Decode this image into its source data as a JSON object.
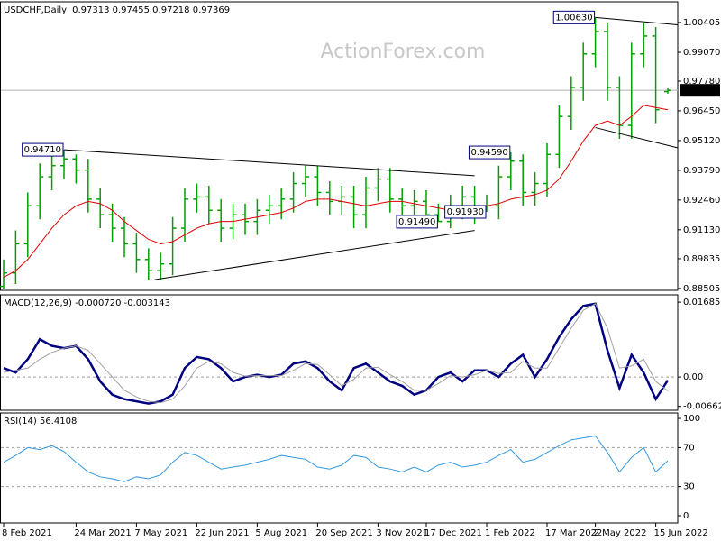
{
  "watermark": "ActionForex.com",
  "chart_data": [
    {
      "type": "ohlc",
      "title": "USDCHF,Daily",
      "ohlc_text": "0.97313 0.97455 0.97218 0.97369",
      "ylim": [
        0.8842,
        1.0133
      ],
      "yticks": [
        1.00405,
        {
          "value": 0.9907,
          "label": "0.99070"
        },
        {
          "value": 0.9778,
          "label": "0.97780"
        },
        {
          "value": 0.9645,
          "label": "0.96450"
        },
        {
          "value": 0.9512,
          "label": "0.95120"
        },
        {
          "value": 0.9379,
          "label": "0.93790"
        },
        {
          "value": 0.9246,
          "label": "0.92460"
        },
        {
          "value": 0.9113,
          "label": "0.91130"
        },
        0.89835,
        0.88505
      ],
      "color": "#00a000",
      "open": [
        0.886,
        0.892,
        0.905,
        0.922,
        0.935,
        0.94,
        0.943,
        0.938,
        0.925,
        0.918,
        0.912,
        0.905,
        0.898,
        0.893,
        0.896,
        0.912,
        0.925,
        0.926,
        0.92,
        0.912,
        0.918,
        0.915,
        0.92,
        0.922,
        0.925,
        0.932,
        0.935,
        0.928,
        0.924,
        0.926,
        0.918,
        0.93,
        0.934,
        0.925,
        0.922,
        0.924,
        0.918,
        0.915,
        0.922,
        0.926,
        0.92,
        0.922,
        0.935,
        0.942,
        0.928,
        0.932,
        0.945,
        0.962,
        0.975,
        0.99,
        1.0,
        0.975,
        0.958,
        0.99,
        0.998,
        0.97313
      ],
      "high": [
        0.898,
        0.911,
        0.928,
        0.941,
        0.946,
        0.9471,
        0.945,
        0.943,
        0.93,
        0.923,
        0.917,
        0.91,
        0.903,
        0.901,
        0.917,
        0.93,
        0.932,
        0.931,
        0.925,
        0.923,
        0.923,
        0.925,
        0.927,
        0.93,
        0.937,
        0.94,
        0.94,
        0.933,
        0.931,
        0.931,
        0.935,
        0.939,
        0.939,
        0.93,
        0.929,
        0.929,
        0.923,
        0.927,
        0.931,
        0.931,
        0.927,
        0.94,
        0.9459,
        0.945,
        0.937,
        0.95,
        0.967,
        0.98,
        0.995,
        1.0063,
        1.004,
        0.98,
        0.995,
        1.004,
        1.002,
        0.97455
      ],
      "low": [
        0.885,
        0.887,
        0.899,
        0.916,
        0.929,
        0.934,
        0.932,
        0.919,
        0.912,
        0.906,
        0.899,
        0.892,
        0.889,
        0.889,
        0.891,
        0.906,
        0.919,
        0.914,
        0.906,
        0.907,
        0.909,
        0.909,
        0.914,
        0.916,
        0.919,
        0.926,
        0.922,
        0.918,
        0.918,
        0.912,
        0.912,
        0.924,
        0.919,
        0.916,
        0.916,
        0.912,
        0.9149,
        0.912,
        0.916,
        0.914,
        0.9193,
        0.916,
        0.929,
        0.922,
        0.922,
        0.926,
        0.939,
        0.956,
        0.969,
        0.984,
        0.969,
        0.952,
        0.952,
        0.984,
        0.959,
        0.97218
      ],
      "close": [
        0.892,
        0.905,
        0.922,
        0.935,
        0.94,
        0.943,
        0.938,
        0.925,
        0.918,
        0.912,
        0.905,
        0.898,
        0.893,
        0.896,
        0.912,
        0.925,
        0.926,
        0.92,
        0.912,
        0.918,
        0.915,
        0.92,
        0.922,
        0.925,
        0.932,
        0.935,
        0.928,
        0.924,
        0.926,
        0.918,
        0.93,
        0.934,
        0.925,
        0.922,
        0.924,
        0.918,
        0.915,
        0.922,
        0.926,
        0.92,
        0.922,
        0.935,
        0.942,
        0.928,
        0.932,
        0.945,
        0.962,
        0.975,
        0.99,
        1.0,
        0.975,
        0.958,
        0.99,
        0.998,
        0.965,
        0.97369
      ],
      "ma": {
        "color": "#e00000",
        "values": [
          0.89,
          0.893,
          0.898,
          0.905,
          0.912,
          0.918,
          0.922,
          0.924,
          0.923,
          0.92,
          0.915,
          0.911,
          0.907,
          0.905,
          0.906,
          0.909,
          0.912,
          0.914,
          0.915,
          0.915,
          0.916,
          0.917,
          0.918,
          0.919,
          0.921,
          0.924,
          0.925,
          0.925,
          0.924,
          0.923,
          0.922,
          0.923,
          0.924,
          0.924,
          0.923,
          0.922,
          0.921,
          0.92,
          0.921,
          0.922,
          0.922,
          0.923,
          0.925,
          0.926,
          0.927,
          0.929,
          0.934,
          0.942,
          0.951,
          0.958,
          0.96,
          0.958,
          0.962,
          0.967,
          0.966,
          0.965
        ]
      },
      "last_value": 0.97369,
      "annotations": [
        {
          "index": 5,
          "value": 0.9471,
          "label": "0.94710"
        },
        {
          "index": 36,
          "value": 0.9149,
          "label": "0.91490"
        },
        {
          "index": 40,
          "value": 0.9193,
          "label": "0.91930"
        },
        {
          "index": 42,
          "value": 0.9459,
          "label": "0.94590"
        },
        {
          "index": 49,
          "value": 1.0063,
          "label": "1.00630"
        }
      ],
      "trendlines": [
        {
          "x": [
            5,
            39
          ],
          "y": [
            0.9471,
            0.9355
          ]
        },
        {
          "x": [
            12.5,
            39
          ],
          "y": [
            0.889,
            0.911
          ]
        },
        {
          "x": [
            49,
            55.8
          ],
          "y": [
            1.0063,
            1.003
          ]
        },
        {
          "x": [
            49,
            55.8
          ],
          "y": [
            0.957,
            0.948
          ]
        }
      ]
    },
    {
      "type": "line",
      "title": "MACD(12,26,9) -0.000720 -0.003143",
      "ylim": [
        -0.0075,
        0.0185
      ],
      "yticks": [
        0.016856,
        {
          "value": 0,
          "label": "0.00"
        },
        -0.006629
      ],
      "levels": [
        0
      ],
      "series": [
        {
          "color": "#000080",
          "width": 2.5,
          "values": [
            0.002,
            0.001,
            0.004,
            0.0085,
            0.007,
            0.0065,
            0.007,
            0.004,
            -0.001,
            -0.004,
            -0.005,
            -0.0055,
            -0.006,
            -0.0055,
            -0.004,
            0.002,
            0.0045,
            0.004,
            0.002,
            -0.001,
            0.0,
            0.0005,
            0.0,
            0.0005,
            0.003,
            0.0035,
            0.002,
            -0.001,
            -0.003,
            0.002,
            0.003,
            0.001,
            -0.001,
            -0.002,
            -0.004,
            -0.003,
            0.0,
            0.001,
            -0.001,
            0.0015,
            0.0015,
            0.0,
            0.003,
            0.005,
            0.0,
            0.004,
            0.009,
            0.013,
            0.016,
            0.0165,
            0.006,
            -0.0025,
            0.005,
            0.001,
            -0.005,
            -0.00072
          ]
        },
        {
          "color": "#a0a0a0",
          "width": 1,
          "values": [
            0.001,
            0.0015,
            0.002,
            0.004,
            0.0055,
            0.0065,
            0.007,
            0.006,
            0.003,
            0.0,
            -0.003,
            -0.0045,
            -0.0055,
            -0.0058,
            -0.005,
            -0.002,
            0.002,
            0.0035,
            0.003,
            0.001,
            0.0002,
            0.0003,
            0.0003,
            0.0003,
            0.0015,
            0.003,
            0.0028,
            0.0005,
            -0.002,
            -0.0005,
            0.002,
            0.0022,
            0.0005,
            -0.001,
            -0.003,
            -0.003,
            -0.0015,
            0.0003,
            0.0,
            0.0005,
            0.0015,
            0.0008,
            0.001,
            0.0035,
            0.002,
            0.002,
            0.0065,
            0.011,
            0.015,
            0.0165,
            0.011,
            0.002,
            0.0025,
            0.004,
            -0.001,
            -0.003143
          ]
        }
      ]
    },
    {
      "type": "line",
      "title": "RSI(14) 56.4108",
      "ylim": [
        -7.4,
        105.6
      ],
      "yticks": [
        100,
        70,
        30,
        0
      ],
      "levels": [
        70,
        30
      ],
      "series": [
        {
          "color": "#3399dd",
          "width": 1,
          "values": [
            55,
            62,
            70,
            68,
            72,
            66,
            55,
            45,
            40,
            38,
            35,
            40,
            38,
            42,
            55,
            65,
            62,
            55,
            48,
            50,
            52,
            55,
            58,
            62,
            60,
            58,
            50,
            48,
            52,
            62,
            60,
            50,
            48,
            45,
            50,
            45,
            52,
            55,
            50,
            52,
            55,
            62,
            68,
            55,
            58,
            65,
            72,
            78,
            80,
            82,
            65,
            45,
            60,
            70,
            45,
            56.4108
          ]
        }
      ],
      "categories": [
        "8 Feb 2021",
        null,
        null,
        null,
        null,
        null,
        "24 Mar 2021",
        null,
        null,
        null,
        null,
        "7 May 2021",
        null,
        null,
        null,
        null,
        "22 Jun 2021",
        null,
        null,
        null,
        null,
        "5 Aug 2021",
        null,
        null,
        null,
        null,
        "20 Sep 2021",
        null,
        null,
        null,
        null,
        "3 Nov 2021",
        null,
        null,
        null,
        "17 Dec 2021",
        null,
        null,
        null,
        null,
        "1 Feb 2022",
        null,
        null,
        null,
        null,
        "17 Mar 2022",
        null,
        null,
        null,
        "2 May 2022",
        null,
        null,
        null,
        null,
        "15 Jun 2022",
        null
      ]
    }
  ]
}
